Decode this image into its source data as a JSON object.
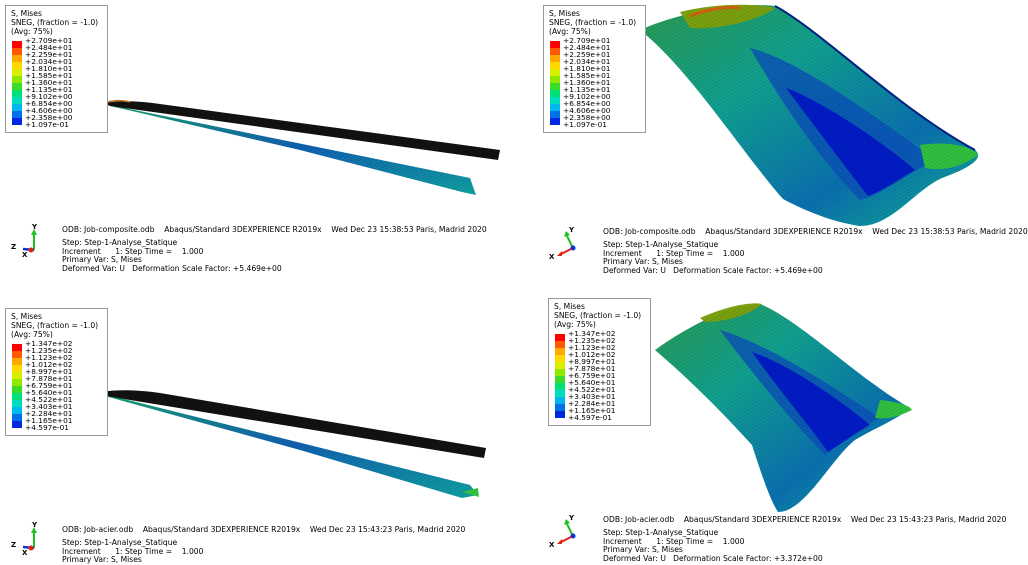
{
  "legend_colors": [
    "#ff0000",
    "#ff5a00",
    "#ffa800",
    "#ffd800",
    "#d8f000",
    "#8ee800",
    "#3ddc28",
    "#00e07a",
    "#00dcc0",
    "#00b8f0",
    "#0070e6",
    "#0028e0"
  ],
  "axis_colors": {
    "x": "#e02010",
    "y": "#20c020",
    "z": "#1030d0"
  },
  "panels": [
    {
      "legend": {
        "title": "S, Mises",
        "sneg": "SNEG, (fraction = -1.0)",
        "avg": "(Avg: 75%)",
        "values": [
          "+2.709e+01",
          "+2.484e+01",
          "+2.259e+01",
          "+2.034e+01",
          "+1.810e+01",
          "+1.585e+01",
          "+1.360e+01",
          "+1.135e+01",
          "+9.102e+00",
          "+6.854e+00",
          "+4.606e+00",
          "+2.358e+00",
          "+1.097e-01"
        ]
      },
      "odb": "ODB: Job-composite.odb    Abaqus/Standard 3DEXPERIENCE R2019x    Wed Dec 23 15:38:53 Paris, Madrid 2020",
      "step": "Step: Step-1-Analyse_Statique",
      "increment": "Increment      1: Step Time =    1.000",
      "primary": "Primary Var: S, Mises",
      "deformed": "Deformed Var: U   Deformation Scale Factor: +5.469e+00",
      "triad": {
        "labels": [
          "Y",
          "Z",
          "X"
        ]
      }
    },
    {
      "legend": {
        "title": "S, Mises",
        "sneg": "SNEG, (fraction = -1.0)",
        "avg": "(Avg: 75%)",
        "values": [
          "+2.709e+01",
          "+2.484e+01",
          "+2.259e+01",
          "+2.034e+01",
          "+1.810e+01",
          "+1.585e+01",
          "+1.360e+01",
          "+1.135e+01",
          "+9.102e+00",
          "+6.854e+00",
          "+4.606e+00",
          "+2.358e+00",
          "+1.097e-01"
        ]
      },
      "odb": "ODB: Job-composite.odb    Abaqus/Standard 3DEXPERIENCE R2019x    Wed Dec 23 15:38:53 Paris, Madrid 2020",
      "step": "Step: Step-1-Analyse_Statique",
      "increment": "Increment      1: Step Time =    1.000",
      "primary": "Primary Var: S, Mises",
      "deformed": "Deformed Var: U   Deformation Scale Factor: +5.469e+00",
      "triad": {
        "labels": [
          "Y",
          "X"
        ]
      }
    },
    {
      "legend": {
        "title": "S, Mises",
        "sneg": "SNEG, (fraction = -1.0)",
        "avg": "(Avg: 75%)",
        "values": [
          "+1.347e+02",
          "+1.235e+02",
          "+1.123e+02",
          "+1.012e+02",
          "+8.997e+01",
          "+7.878e+01",
          "+6.759e+01",
          "+5.640e+01",
          "+4.522e+01",
          "+3.403e+01",
          "+2.284e+01",
          "+1.165e+01",
          "+4.597e-01"
        ]
      },
      "odb": "ODB: Job-acier.odb    Abaqus/Standard 3DEXPERIENCE R2019x    Wed Dec 23 15:43:23 Paris, Madrid 2020",
      "step": "Step: Step-1-Analyse_Statique",
      "increment": "Increment      1: Step Time =    1.000",
      "primary": "Primary Var: S, Mises",
      "triad": {
        "labels": [
          "Y",
          "Z",
          "X"
        ]
      }
    },
    {
      "legend": {
        "title": "S, Mises",
        "sneg": "SNEG, (fraction = -1.0)",
        "avg": "(Avg: 75%)",
        "values": [
          "+1.347e+02",
          "+1.235e+02",
          "+1.123e+02",
          "+1.012e+02",
          "+8.997e+01",
          "+7.878e+01",
          "+6.759e+01",
          "+5.640e+01",
          "+4.522e+01",
          "+3.403e+01",
          "+2.284e+01",
          "+1.165e+01",
          "+4.597e-01"
        ]
      },
      "odb": "ODB: Job-acier.odb    Abaqus/Standard 3DEXPERIENCE R2019x    Wed Dec 23 15:43:23 Paris, Madrid 2020",
      "step": "Step: Step-1-Analyse_Statique",
      "increment": "Increment      1: Step Time =    1.000",
      "primary": "Primary Var: S, Mises",
      "deformed": "Deformed Var: U   Deformation Scale Factor: +3.372e+00",
      "triad": {
        "labels": [
          "Y",
          "X"
        ]
      }
    }
  ]
}
